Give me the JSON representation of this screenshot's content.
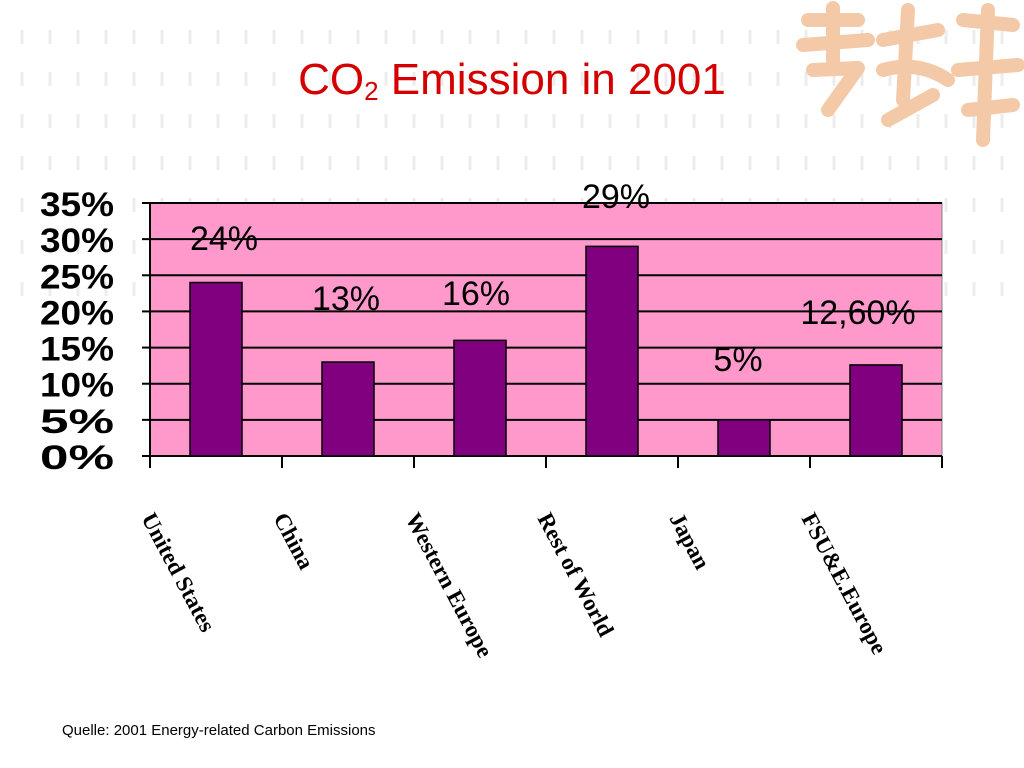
{
  "title": {
    "main": "CO",
    "sub": "2",
    "rest": " Emission in 2001"
  },
  "source_note": "Quelle:  2001 Energy-related Carbon Emissions",
  "colors": {
    "title": "#d40000",
    "plot_bg": "#ff99cc",
    "bar": "#800080",
    "grid": "#000000",
    "logo": "#f4c9a8"
  },
  "logo_icon": "decorative-calligraphy-logo",
  "chart_data": {
    "type": "bar",
    "title": "CO2 Emission in 2001",
    "categories": [
      "United States",
      "China",
      "Western Europe",
      "Rest of World",
      "Japan",
      "FSU&E.Europe"
    ],
    "values": [
      24,
      13,
      16,
      29,
      5,
      12.6
    ],
    "data_labels": [
      "24%",
      "13%",
      "16%",
      "29%",
      "5%",
      "12,60%"
    ],
    "ylim": [
      0,
      35
    ],
    "yticks": [
      0,
      5,
      10,
      15,
      20,
      25,
      30,
      35
    ],
    "ytick_labels": [
      "0%",
      "5%",
      "10%",
      "15%",
      "20%",
      "25%",
      "30%",
      "35%"
    ],
    "xlabel": "",
    "ylabel": "",
    "grid": true,
    "legend": "none"
  }
}
